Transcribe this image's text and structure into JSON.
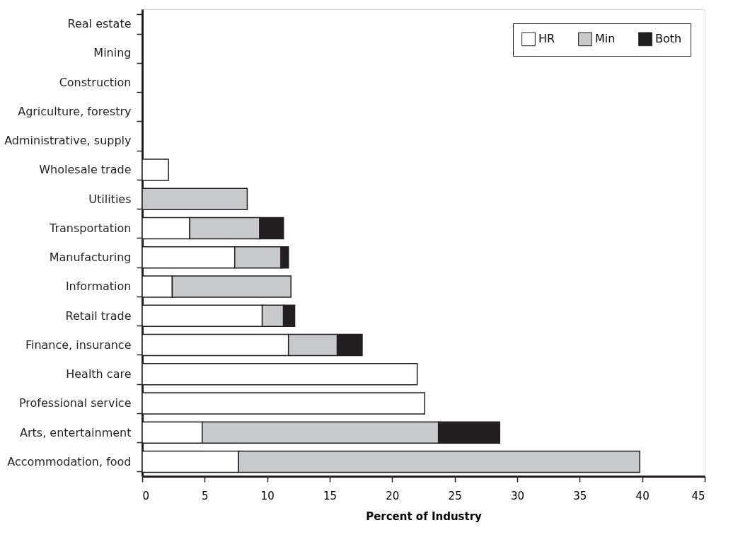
{
  "chart_data": {
    "type": "bar",
    "orientation": "horizontal",
    "stacked": true,
    "xlabel": "Percent of Industry",
    "categories": [
      "Real estate",
      "Mining",
      "Construction",
      "Agriculture, forestry",
      "Administrative, supply",
      "Wholesale trade",
      "Utilities",
      "Transportation",
      "Manufacturing",
      "Information",
      "Retail trade",
      "Finance, insurance",
      "Health care",
      "Professional service",
      "Arts, entertainment",
      "Accommodation, food"
    ],
    "series": [
      {
        "name": "HR",
        "color": "#ffffff",
        "values": [
          null,
          null,
          null,
          null,
          null,
          2.1,
          null,
          3.8,
          7.4,
          2.4,
          9.6,
          11.7,
          22.0,
          22.6,
          4.8,
          7.7
        ]
      },
      {
        "name": "Min",
        "color": "#c8c9ca",
        "values": [
          null,
          null,
          null,
          null,
          null,
          null,
          8.4,
          5.6,
          3.7,
          9.5,
          1.7,
          3.9,
          null,
          null,
          18.9,
          32.1
        ]
      },
      {
        "name": "Both",
        "color": "#231f20",
        "values": [
          null,
          null,
          null,
          null,
          null,
          null,
          null,
          1.9,
          0.6,
          null,
          0.9,
          2.0,
          null,
          null,
          4.9,
          null
        ]
      }
    ],
    "xlim": [
      0,
      45
    ],
    "xticks": [
      0,
      5,
      10,
      15,
      20,
      25,
      30,
      35,
      40,
      45
    ],
    "grid": false,
    "legend": "top right"
  }
}
